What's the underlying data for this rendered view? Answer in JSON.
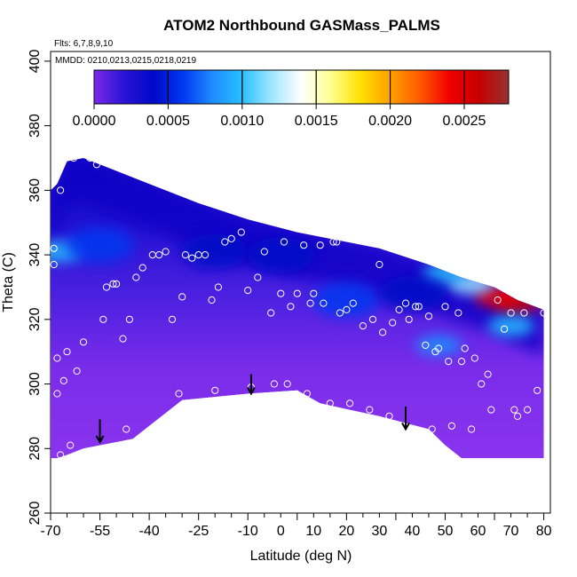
{
  "chart_data": {
    "type": "heatmap",
    "title": "ATOM2 Northbound GASMass_PALMS",
    "flights_label": "Flts: 6,7,8,9,10",
    "dates_label": "MMDD: 0210,0213,0215,0218,0219",
    "xlabel": "Latitude (deg N)",
    "ylabel": "Theta (C)",
    "xlim": [
      -70,
      82
    ],
    "ylim": [
      260,
      403
    ],
    "x_ticks": [
      -70,
      -55,
      -40,
      -25,
      -10,
      5,
      20,
      35,
      50,
      65,
      80
    ],
    "x_tick_labels": [
      "-70",
      "-55",
      "-40",
      "-25",
      "-10",
      "0",
      "10",
      "20",
      "30",
      "40",
      "50",
      "60",
      "70",
      "80"
    ],
    "x_tick_label_values": [
      -70,
      -55,
      -40,
      -25,
      -10,
      0,
      10,
      20,
      30,
      40,
      50,
      60,
      70,
      80
    ],
    "x_minor_ticks": [
      -65,
      -60,
      -50,
      -45,
      -35,
      -30,
      -20,
      -15,
      -5,
      0,
      10,
      15,
      25,
      30,
      40,
      45,
      55,
      60,
      70,
      75
    ],
    "y_ticks": [
      260,
      280,
      300,
      320,
      340,
      360,
      380,
      400
    ],
    "colorbar": {
      "range": [
        0,
        0.0028
      ],
      "tick_values": [
        0,
        0.0005,
        0.001,
        0.0015,
        0.002,
        0.0025
      ],
      "tick_labels": [
        "0.0000",
        "0.0005",
        "0.0010",
        "0.0015",
        "0.0020",
        "0.0025"
      ],
      "colors": [
        "#7b28e8",
        "#2a14d6",
        "#0008c8",
        "#0038f0",
        "#1e8cff",
        "#28c0ff",
        "#a0e6ff",
        "#ffffff",
        "#ffff90",
        "#ffe000",
        "#ffa000",
        "#ff5a00",
        "#f00000",
        "#c80000",
        "#963232"
      ]
    },
    "field_boundary_top": [
      [
        -70,
        360
      ],
      [
        -68,
        362
      ],
      [
        -65,
        369
      ],
      [
        -60,
        370
      ],
      [
        -55,
        368
      ],
      [
        -50,
        366
      ],
      [
        -40,
        362
      ],
      [
        -25,
        356
      ],
      [
        -10,
        351
      ],
      [
        5,
        347
      ],
      [
        20,
        344
      ],
      [
        30,
        342
      ],
      [
        45,
        337
      ],
      [
        55,
        333
      ],
      [
        65,
        330
      ],
      [
        72,
        326
      ],
      [
        80,
        323
      ]
    ],
    "field_boundary_bottom": [
      [
        80,
        277
      ],
      [
        55,
        277
      ],
      [
        50,
        281
      ],
      [
        45,
        286
      ],
      [
        30,
        290
      ],
      [
        12,
        294
      ],
      [
        5,
        298
      ],
      [
        -10,
        297
      ],
      [
        -30,
        295
      ],
      [
        -45,
        283
      ],
      [
        -60,
        280
      ],
      [
        -65,
        278
      ],
      [
        -68,
        277
      ],
      [
        -70,
        277
      ]
    ],
    "field_features": [
      {
        "kind": "high",
        "x": 72,
        "y": 325,
        "value": 0.0026
      },
      {
        "kind": "high",
        "x": 66,
        "y": 327,
        "value": 0.0023
      },
      {
        "kind": "high",
        "x": 58,
        "y": 331,
        "value": 0.0012
      },
      {
        "kind": "high",
        "x": 50,
        "y": 334,
        "value": 0.0009
      },
      {
        "kind": "high",
        "x": 70,
        "y": 318,
        "value": 0.0009
      },
      {
        "kind": "high",
        "x": 48,
        "y": 312,
        "value": 0.0008
      },
      {
        "kind": "high",
        "x": -67,
        "y": 341,
        "value": 0.0009
      },
      {
        "kind": "mid",
        "x": -55,
        "y": 343,
        "value": 0.0005
      },
      {
        "kind": "mid",
        "x": -20,
        "y": 341,
        "value": 0.0004
      },
      {
        "kind": "mid",
        "x": 20,
        "y": 326,
        "value": 0.0005
      },
      {
        "kind": "mid",
        "x": 40,
        "y": 328,
        "value": 0.0004
      },
      {
        "kind": "mid",
        "x": 0,
        "y": 340,
        "value": 0.0004
      }
    ],
    "sample_points": [
      [
        -69,
        342
      ],
      [
        -69,
        337
      ],
      [
        -68,
        308
      ],
      [
        -68,
        297
      ],
      [
        -67,
        360
      ],
      [
        -67,
        278
      ],
      [
        -66,
        301
      ],
      [
        -65,
        310
      ],
      [
        -64,
        281
      ],
      [
        -63,
        370
      ],
      [
        -62,
        304
      ],
      [
        -60,
        313
      ],
      [
        -58,
        370
      ],
      [
        -56,
        368
      ],
      [
        -54,
        320
      ],
      [
        -53,
        330
      ],
      [
        -51,
        331
      ],
      [
        -50,
        331
      ],
      [
        -48,
        314
      ],
      [
        -47,
        286
      ],
      [
        -46,
        320
      ],
      [
        -44,
        333
      ],
      [
        -42,
        336
      ],
      [
        -39,
        340
      ],
      [
        -37,
        340
      ],
      [
        -35,
        341
      ],
      [
        -33,
        320
      ],
      [
        -31,
        297
      ],
      [
        -30,
        327
      ],
      [
        -29,
        340
      ],
      [
        -27,
        339
      ],
      [
        -25,
        340
      ],
      [
        -23,
        340
      ],
      [
        -21,
        326
      ],
      [
        -20,
        298
      ],
      [
        -19,
        330
      ],
      [
        -17,
        344
      ],
      [
        -15,
        345
      ],
      [
        -12,
        347
      ],
      [
        -10,
        329
      ],
      [
        -9,
        299
      ],
      [
        -7,
        333
      ],
      [
        -5,
        341
      ],
      [
        -3,
        322
      ],
      [
        -2,
        300
      ],
      [
        0,
        328
      ],
      [
        1,
        344
      ],
      [
        2,
        300
      ],
      [
        3,
        324
      ],
      [
        5,
        328
      ],
      [
        7,
        343
      ],
      [
        8,
        297
      ],
      [
        9,
        325
      ],
      [
        10,
        328
      ],
      [
        12,
        343
      ],
      [
        13,
        325
      ],
      [
        15,
        294
      ],
      [
        16,
        344
      ],
      [
        17,
        344
      ],
      [
        18,
        322
      ],
      [
        20,
        323
      ],
      [
        21,
        294
      ],
      [
        22,
        325
      ],
      [
        24,
        347
      ],
      [
        25,
        318
      ],
      [
        27,
        292
      ],
      [
        28,
        320
      ],
      [
        30,
        337
      ],
      [
        31,
        316
      ],
      [
        33,
        290
      ],
      [
        34,
        319
      ],
      [
        35,
        345
      ],
      [
        36,
        323
      ],
      [
        38,
        325
      ],
      [
        39,
        320
      ],
      [
        41,
        324
      ],
      [
        42,
        324
      ],
      [
        44,
        312
      ],
      [
        45,
        321
      ],
      [
        46,
        286
      ],
      [
        47,
        310
      ],
      [
        48,
        311
      ],
      [
        50,
        324
      ],
      [
        51,
        307
      ],
      [
        52,
        287
      ],
      [
        54,
        322
      ],
      [
        55,
        307
      ],
      [
        56,
        311
      ],
      [
        58,
        286
      ],
      [
        59,
        308
      ],
      [
        61,
        300
      ],
      [
        63,
        303
      ],
      [
        64,
        292
      ],
      [
        66,
        326
      ],
      [
        68,
        317
      ],
      [
        70,
        322
      ],
      [
        71,
        292
      ],
      [
        72,
        290
      ],
      [
        74,
        322
      ],
      [
        75,
        292
      ],
      [
        78,
        298
      ],
      [
        80,
        322
      ]
    ],
    "arrows": [
      {
        "x": -55,
        "y_top": 289,
        "y_bottom": 282
      },
      {
        "x": -9,
        "y_top": 303,
        "y_bottom": 297
      },
      {
        "x": 38,
        "y_top": 293,
        "y_bottom": 286
      }
    ]
  }
}
